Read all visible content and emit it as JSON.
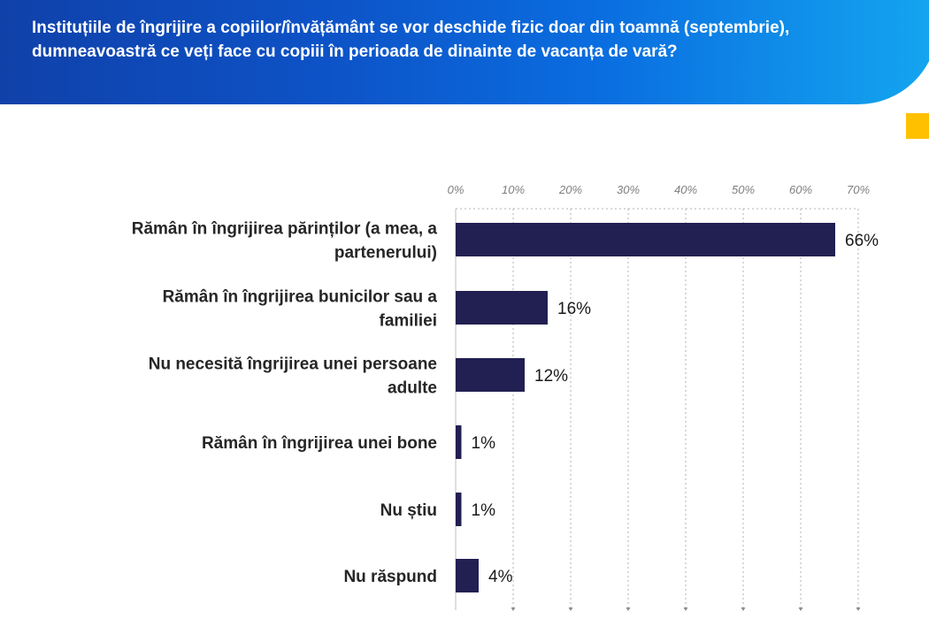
{
  "header": {
    "title": "Instituțiile de îngrijire a copiilor/învățământ se vor deschide fizic doar din toamnă (septembrie), dumneavoastră ce veți face cu copiii în perioada de dinainte de vacanța de vară?"
  },
  "colors": {
    "bar": "#221f52",
    "header": "#0d52c6",
    "badge": "#ffc000"
  },
  "chart_data": {
    "type": "bar",
    "orientation": "horizontal",
    "categories": [
      [
        "Rămân în îngrijirea părinților (a mea, a",
        "partenerului)"
      ],
      [
        "Rămân în îngrijirea bunicilor sau a",
        "familiei"
      ],
      [
        "Nu necesită îngrijirea unei persoane",
        "adulte"
      ],
      [
        "Rămân în îngrijirea unei bone"
      ],
      [
        "Nu știu"
      ],
      [
        "Nu răspund"
      ]
    ],
    "values": [
      66,
      16,
      12,
      1,
      1,
      4
    ],
    "value_labels": [
      "66%",
      "16%",
      "12%",
      "1%",
      "1%",
      "4%"
    ],
    "xlim": [
      0,
      70
    ],
    "x_ticks": [
      0,
      10,
      20,
      30,
      40,
      50,
      60,
      70
    ],
    "x_tick_labels": [
      "0%",
      "10%",
      "20%",
      "30%",
      "40%",
      "50%",
      "60%",
      "70%"
    ],
    "axis_position": "top",
    "grid": true,
    "legend": "none"
  }
}
